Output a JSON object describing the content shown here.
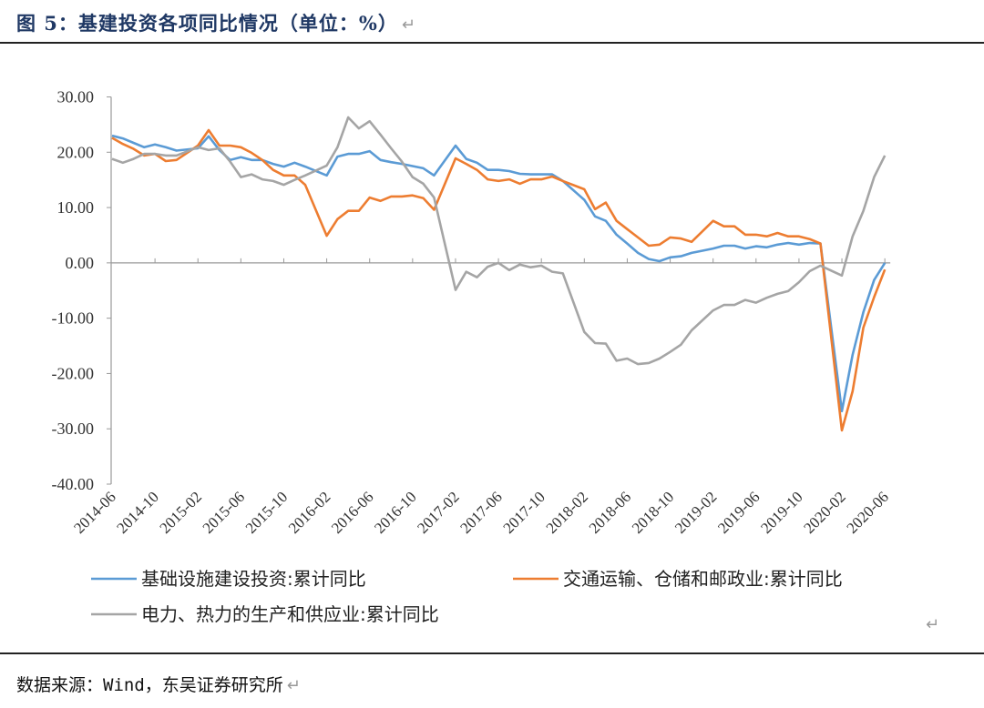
{
  "document": {
    "title": "图 5：基建投资各项同比情况（单位：%）",
    "paragraph_mark": "↵",
    "source": "数据来源：Wind，东吴证券研究所"
  },
  "chart_data": {
    "type": "line",
    "title": "",
    "xlabel": "",
    "ylabel": "",
    "ylim": [
      -40,
      30
    ],
    "y_ticks": [
      30,
      20,
      10,
      0,
      -10,
      -20,
      -30,
      -40
    ],
    "y_tick_labels": [
      "30.00",
      "20.00",
      "10.00",
      "0.00",
      "-10.00",
      "-20.00",
      "-30.00",
      "-40.00"
    ],
    "x_tick_labels": [
      "2014-06",
      "2014-10",
      "2015-02",
      "2015-06",
      "2015-10",
      "2016-02",
      "2016-06",
      "2016-10",
      "2017-02",
      "2017-06",
      "2017-10",
      "2018-02",
      "2018-06",
      "2018-10",
      "2019-02",
      "2019-06",
      "2019-10",
      "2020-02",
      "2020-06"
    ],
    "grid": false,
    "legend_position": "bottom",
    "x": [
      "2014-06",
      "2014-07",
      "2014-08",
      "2014-09",
      "2014-10",
      "2014-11",
      "2014-12",
      "2015-01",
      "2015-02",
      "2015-03",
      "2015-04",
      "2015-05",
      "2015-06",
      "2015-07",
      "2015-08",
      "2015-09",
      "2015-10",
      "2015-11",
      "2015-12",
      "2016-01",
      "2016-02",
      "2016-03",
      "2016-04",
      "2016-05",
      "2016-06",
      "2016-07",
      "2016-08",
      "2016-09",
      "2016-10",
      "2016-11",
      "2016-12",
      "2017-01",
      "2017-02",
      "2017-03",
      "2017-04",
      "2017-05",
      "2017-06",
      "2017-07",
      "2017-08",
      "2017-09",
      "2017-10",
      "2017-11",
      "2017-12",
      "2018-01",
      "2018-02",
      "2018-03",
      "2018-04",
      "2018-05",
      "2018-06",
      "2018-07",
      "2018-08",
      "2018-09",
      "2018-10",
      "2018-11",
      "2018-12",
      "2019-01",
      "2019-02",
      "2019-03",
      "2019-04",
      "2019-05",
      "2019-06",
      "2019-07",
      "2019-08",
      "2019-09",
      "2019-10",
      "2019-11",
      "2019-12",
      "2020-01",
      "2020-02",
      "2020-03",
      "2020-04",
      "2020-05",
      "2020-06"
    ],
    "series": [
      {
        "name": "基础设施建设投资:累计同比",
        "color": "#5b9bd5",
        "values": [
          23.0,
          22.5,
          21.7,
          20.9,
          21.4,
          20.9,
          20.3,
          null,
          20.7,
          22.9,
          20.4,
          18.6,
          19.1,
          18.6,
          18.6,
          17.9,
          17.4,
          18.1,
          17.4,
          null,
          15.8,
          19.2,
          19.7,
          19.7,
          20.2,
          18.6,
          18.2,
          17.9,
          17.5,
          17.1,
          15.8,
          null,
          21.2,
          18.8,
          18.1,
          16.8,
          16.8,
          16.6,
          16.1,
          16.0,
          16.0,
          16.0,
          14.8,
          null,
          11.4,
          8.4,
          7.6,
          5.1,
          3.5,
          1.8,
          0.7,
          0.3,
          1.0,
          1.2,
          1.8,
          null,
          2.6,
          3.1,
          3.1,
          2.6,
          3.0,
          2.8,
          3.3,
          3.6,
          3.3,
          3.6,
          3.5,
          null,
          -26.8,
          -16.6,
          -8.9,
          -3.1,
          0.0
        ]
      },
      {
        "name": "交通运输、仓储和邮政业:累计同比",
        "color": "#ed7d31",
        "values": [
          22.6,
          21.5,
          20.6,
          19.4,
          19.7,
          18.4,
          18.6,
          null,
          21.2,
          24.0,
          21.2,
          21.2,
          20.9,
          19.9,
          18.6,
          16.8,
          15.8,
          15.8,
          14.1,
          null,
          4.9,
          7.9,
          9.4,
          9.4,
          11.8,
          11.2,
          12.0,
          12.0,
          12.2,
          11.7,
          9.6,
          null,
          18.9,
          17.9,
          16.8,
          15.1,
          14.8,
          15.1,
          14.3,
          15.1,
          15.1,
          15.6,
          14.8,
          null,
          13.3,
          9.7,
          10.9,
          7.6,
          6.1,
          4.6,
          3.1,
          3.3,
          4.6,
          4.4,
          3.8,
          null,
          7.6,
          6.6,
          6.6,
          5.1,
          5.1,
          4.8,
          5.4,
          4.8,
          4.8,
          4.3,
          3.5,
          null,
          -30.3,
          -23.2,
          -11.7,
          -6.2,
          -1.2
        ]
      },
      {
        "name": "电力、热力的生产和供应业:累计同比",
        "color": "#a5a5a5",
        "values": [
          18.8,
          18.1,
          18.8,
          19.7,
          19.7,
          19.4,
          19.4,
          null,
          20.9,
          20.4,
          20.7,
          18.3,
          15.5,
          16.0,
          15.1,
          14.8,
          14.1,
          15.0,
          15.8,
          null,
          17.6,
          20.9,
          26.3,
          24.3,
          25.6,
          23.2,
          20.7,
          18.3,
          15.5,
          14.3,
          11.8,
          null,
          -4.9,
          -1.6,
          -2.6,
          -0.7,
          0.0,
          -1.3,
          -0.3,
          -0.8,
          -0.5,
          -1.6,
          -1.9,
          null,
          -12.5,
          -14.5,
          -14.6,
          -17.7,
          -17.3,
          -18.3,
          -18.1,
          -17.3,
          -16.1,
          -14.8,
          -12.2,
          null,
          -8.6,
          -7.6,
          -7.6,
          -6.7,
          -7.2,
          -6.3,
          -5.6,
          -5.1,
          -3.5,
          -1.5,
          -0.5,
          null,
          -2.3,
          4.8,
          9.4,
          15.5,
          19.4
        ]
      }
    ]
  }
}
